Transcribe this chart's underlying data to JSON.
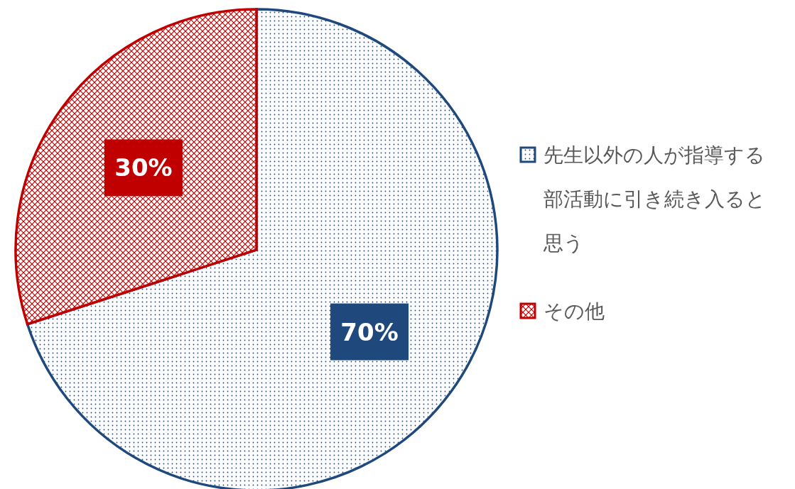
{
  "chart_data": {
    "type": "pie",
    "categories": [
      "先生以外の人が指導する部活動に引き続き入ると思う",
      "その他"
    ],
    "values": [
      70,
      30
    ],
    "value_labels": [
      "70%",
      "30%"
    ],
    "colors": [
      "#1f497d",
      "#c00000"
    ],
    "legend": "right"
  }
}
